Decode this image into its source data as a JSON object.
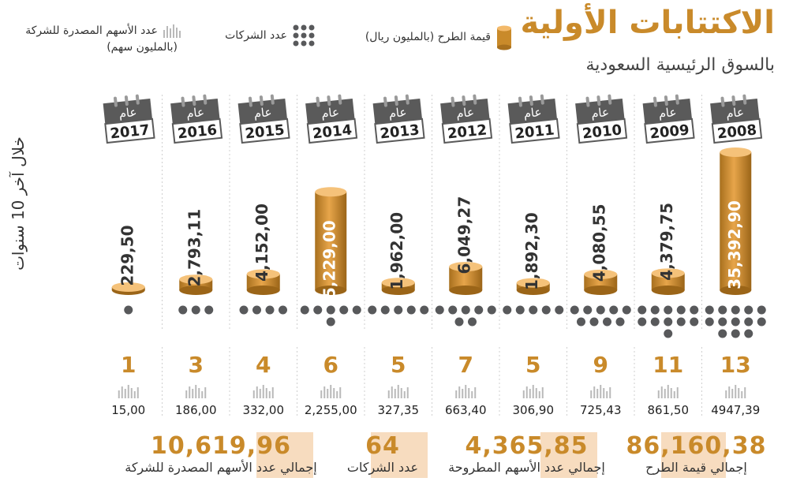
{
  "title": "الاكتتابات الأولية",
  "subtitle": "بالسوق الرئيسية السعودية",
  "side_label": "خلال آخر 10 سنوات",
  "legend": {
    "value_label": "قيمة الطرح (بالمليون ريال)",
    "companies_label": "عدد الشركات",
    "shares_label": "عدد الأسهم المصدرة للشركة",
    "shares_sub": "(بالمليون سهم)"
  },
  "year_prefix": "عام",
  "colors": {
    "gold": "#c98a2a",
    "dot": "#58595b",
    "calendar": "#5a5a5a",
    "highlight": "#f7dcbf"
  },
  "chart_data": {
    "type": "bar",
    "categories": [
      "2008",
      "2009",
      "2010",
      "2011",
      "2012",
      "2013",
      "2014",
      "2015",
      "2016",
      "2017"
    ],
    "series": [
      {
        "name": "قيمة الطرح (بالمليون ريال)",
        "values": [
          35392.9,
          4379.75,
          4080.55,
          1892.3,
          6049.27,
          1962.0,
          25229.0,
          4152.0,
          2793.11,
          229.5
        ],
        "labels": [
          "35,392,90",
          "4,379,75",
          "4,080,55",
          "1,892,30",
          "6,049,27",
          "1,962,00",
          "25,229,00",
          "4,152,00",
          "2,793,11",
          "229,50"
        ]
      },
      {
        "name": "عدد الشركات",
        "values": [
          13,
          11,
          9,
          5,
          7,
          5,
          6,
          4,
          3,
          1
        ]
      },
      {
        "name": "عدد الأسهم المصدرة للشركة",
        "values": [
          4947.39,
          861.5,
          725.43,
          306.9,
          663.4,
          327.35,
          2255.0,
          332.0,
          186.0,
          15.0
        ],
        "labels": [
          "4947,39",
          "861,50",
          "725,43",
          "306,90",
          "663,40",
          "327,35",
          "2,255,00",
          "332,00",
          "186,00",
          "15,00"
        ]
      }
    ]
  },
  "totals": [
    {
      "value": "86,160,38",
      "label": "إجمالي قيمة الطرح"
    },
    {
      "value": "4,365,85",
      "label": "إجمالي عدد الأسهم المطروحة"
    },
    {
      "value": "64",
      "label": "عدد الشركات"
    },
    {
      "value": "10,619,96",
      "label": "إجمالي عدد الأسهم المصدرة للشركة"
    }
  ]
}
